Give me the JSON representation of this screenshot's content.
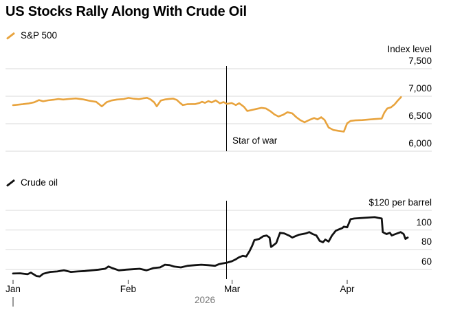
{
  "header": {
    "title": "US Stocks Rally Along With Crude Oil"
  },
  "colors": {
    "sp500": "#E8A33D",
    "crude": "#111111",
    "gridline": "#D8D8D8",
    "war_line": "#000000",
    "tick": "#333333",
    "year_text": "#767676"
  },
  "x_axis": {
    "ticks": [
      {
        "label": "Jan",
        "day": 0
      },
      {
        "label": "Feb",
        "day": 31
      },
      {
        "label": "Mar",
        "day": 59
      },
      {
        "label": "Apr",
        "day": 90
      }
    ],
    "year_label": "2026"
  },
  "chart_data": [
    {
      "type": "line",
      "legend": "S&P 500",
      "color_key": "sp500",
      "y_axis": {
        "unit_label": "Index level",
        "range": [
          6000,
          7500
        ],
        "ticks": [
          {
            "label": "7,500",
            "value": 7500
          },
          {
            "label": "7,000",
            "value": 7000
          },
          {
            "label": "6,500",
            "value": 6500
          },
          {
            "label": "6,000",
            "value": 6000
          }
        ]
      },
      "annotation": {
        "label": "Star of war",
        "day": 57.5
      },
      "series": [
        {
          "name": "S&P 500",
          "points": [
            [
              0,
              6838
            ],
            [
              1.1,
              6845
            ],
            [
              2.6,
              6855
            ],
            [
              4.3,
              6870
            ],
            [
              5.7,
              6890
            ],
            [
              7,
              6930
            ],
            [
              8.1,
              6908
            ],
            [
              9.4,
              6925
            ],
            [
              10.9,
              6936
            ],
            [
              12.2,
              6950
            ],
            [
              13.5,
              6940
            ],
            [
              15,
              6950
            ],
            [
              16.9,
              6960
            ],
            [
              18.7,
              6945
            ],
            [
              20.6,
              6917
            ],
            [
              22.4,
              6897
            ],
            [
              23.9,
              6815
            ],
            [
              25.2,
              6892
            ],
            [
              26.5,
              6922
            ],
            [
              28,
              6940
            ],
            [
              29.8,
              6950
            ],
            [
              31.1,
              6970
            ],
            [
              32.6,
              6955
            ],
            [
              33.9,
              6947
            ],
            [
              35,
              6961
            ],
            [
              36.1,
              6971
            ],
            [
              37,
              6944
            ],
            [
              38,
              6890
            ],
            [
              38.7,
              6816
            ],
            [
              39.8,
              6921
            ],
            [
              40.9,
              6941
            ],
            [
              42,
              6951
            ],
            [
              43.1,
              6957
            ],
            [
              44.1,
              6934
            ],
            [
              45,
              6877
            ],
            [
              45.7,
              6840
            ],
            [
              46.9,
              6855
            ],
            [
              48,
              6857
            ],
            [
              49.1,
              6858
            ],
            [
              50.2,
              6877
            ],
            [
              50.9,
              6899
            ],
            [
              51.7,
              6880
            ],
            [
              52.6,
              6911
            ],
            [
              53.5,
              6889
            ],
            [
              54.6,
              6924
            ],
            [
              55.7,
              6871
            ],
            [
              56.7,
              6894
            ],
            [
              57.6,
              6861
            ],
            [
              58.9,
              6876
            ],
            [
              60,
              6839
            ],
            [
              60.9,
              6872
            ],
            [
              62.2,
              6808
            ],
            [
              63.1,
              6731
            ],
            [
              64.4,
              6751
            ],
            [
              65.7,
              6771
            ],
            [
              66.9,
              6789
            ],
            [
              68.1,
              6777
            ],
            [
              69.3,
              6729
            ],
            [
              70.4,
              6669
            ],
            [
              71.5,
              6631
            ],
            [
              72.8,
              6664
            ],
            [
              73.9,
              6709
            ],
            [
              75.2,
              6689
            ],
            [
              76.3,
              6619
            ],
            [
              77.4,
              6564
            ],
            [
              78.5,
              6526
            ],
            [
              79.8,
              6569
            ],
            [
              81.1,
              6604
            ],
            [
              82,
              6579
            ],
            [
              83,
              6619
            ],
            [
              83.9,
              6569
            ],
            [
              85,
              6431
            ],
            [
              86.3,
              6386
            ],
            [
              87.6,
              6371
            ],
            [
              89.1,
              6356
            ],
            [
              90,
              6509
            ],
            [
              90.9,
              6551
            ],
            [
              92.2,
              6561
            ],
            [
              94.1,
              6566
            ],
            [
              96,
              6577
            ],
            [
              97.8,
              6586
            ],
            [
              99.3,
              6594
            ],
            [
              100,
              6701
            ],
            [
              100.8,
              6779
            ],
            [
              101.8,
              6799
            ],
            [
              102.8,
              6854
            ],
            [
              103.6,
              6919
            ],
            [
              104.5,
              6984
            ]
          ]
        }
      ]
    },
    {
      "type": "line",
      "legend": "Crude oil",
      "color_key": "crude",
      "y_axis": {
        "unit_label": "",
        "range": [
          60,
          120
        ],
        "ticks": [
          {
            "label": "$120 per barrel",
            "value": 120
          },
          {
            "label": "100",
            "value": 100
          },
          {
            "label": "80",
            "value": 80
          },
          {
            "label": "60",
            "value": 60
          }
        ]
      },
      "annotation": {
        "label": "",
        "day": 57.5
      },
      "series": [
        {
          "name": "Crude oil",
          "points": [
            [
              0,
              55.9
            ],
            [
              1.9,
              56.1
            ],
            [
              3.9,
              55.2
            ],
            [
              4.8,
              56.8
            ],
            [
              6.3,
              53.3
            ],
            [
              7.2,
              52.9
            ],
            [
              8.1,
              55.6
            ],
            [
              10,
              57.5
            ],
            [
              11.9,
              58
            ],
            [
              13.7,
              59.1
            ],
            [
              15.6,
              57.5
            ],
            [
              17.4,
              58
            ],
            [
              19.3,
              58.4
            ],
            [
              21.1,
              59.1
            ],
            [
              23,
              59.8
            ],
            [
              24.8,
              60.7
            ],
            [
              25.7,
              63
            ],
            [
              26.7,
              61.4
            ],
            [
              28.5,
              59.1
            ],
            [
              30.4,
              59.8
            ],
            [
              32.2,
              60.2
            ],
            [
              34.1,
              60.7
            ],
            [
              35.9,
              59.1
            ],
            [
              36.9,
              60.2
            ],
            [
              37.8,
              61.4
            ],
            [
              39.6,
              62.1
            ],
            [
              40.9,
              64.8
            ],
            [
              42.2,
              64.3
            ],
            [
              43.3,
              63
            ],
            [
              45.2,
              62.1
            ],
            [
              47,
              63.7
            ],
            [
              48.9,
              64.3
            ],
            [
              50.7,
              64.8
            ],
            [
              52.6,
              64.3
            ],
            [
              54.4,
              63.7
            ],
            [
              55.4,
              65.3
            ],
            [
              56.3,
              66
            ],
            [
              57.6,
              66.9
            ],
            [
              58.9,
              68.3
            ],
            [
              60,
              70.3
            ],
            [
              60.9,
              72.4
            ],
            [
              61.9,
              73.8
            ],
            [
              62.8,
              73.1
            ],
            [
              63.7,
              78.6
            ],
            [
              64.4,
              84.1
            ],
            [
              65,
              89.7
            ],
            [
              66.3,
              91
            ],
            [
              67.4,
              93.8
            ],
            [
              68.3,
              94.5
            ],
            [
              69.1,
              92.4
            ],
            [
              69.5,
              82.8
            ],
            [
              70.2,
              84.8
            ],
            [
              70.9,
              86.9
            ],
            [
              71.9,
              97.2
            ],
            [
              73,
              96.6
            ],
            [
              74.3,
              94.5
            ],
            [
              75.2,
              92.4
            ],
            [
              76.1,
              93.8
            ],
            [
              77,
              95.2
            ],
            [
              78,
              95.9
            ],
            [
              78.9,
              96.6
            ],
            [
              79.8,
              97.9
            ],
            [
              80.7,
              95.9
            ],
            [
              81.7,
              94.5
            ],
            [
              82.6,
              89
            ],
            [
              83.5,
              87.6
            ],
            [
              84.1,
              90.3
            ],
            [
              85,
              88.3
            ],
            [
              85.9,
              94.5
            ],
            [
              86.9,
              99.3
            ],
            [
              87.8,
              100.7
            ],
            [
              88.7,
              102.1
            ],
            [
              89.1,
              103.4
            ],
            [
              90,
              102.8
            ],
            [
              90.9,
              111
            ],
            [
              91.9,
              111.7
            ],
            [
              94.6,
              112.4
            ],
            [
              97.4,
              113.1
            ],
            [
              98.3,
              112.4
            ],
            [
              99.3,
              111.7
            ],
            [
              99.6,
              97.9
            ],
            [
              100.6,
              95.9
            ],
            [
              101.5,
              97.2
            ],
            [
              102,
              94.5
            ],
            [
              103,
              95.9
            ],
            [
              103.9,
              97.2
            ],
            [
              104.4,
              97.9
            ],
            [
              105.2,
              95.9
            ],
            [
              105.7,
              91
            ],
            [
              106.3,
              92.4
            ]
          ]
        }
      ]
    }
  ]
}
